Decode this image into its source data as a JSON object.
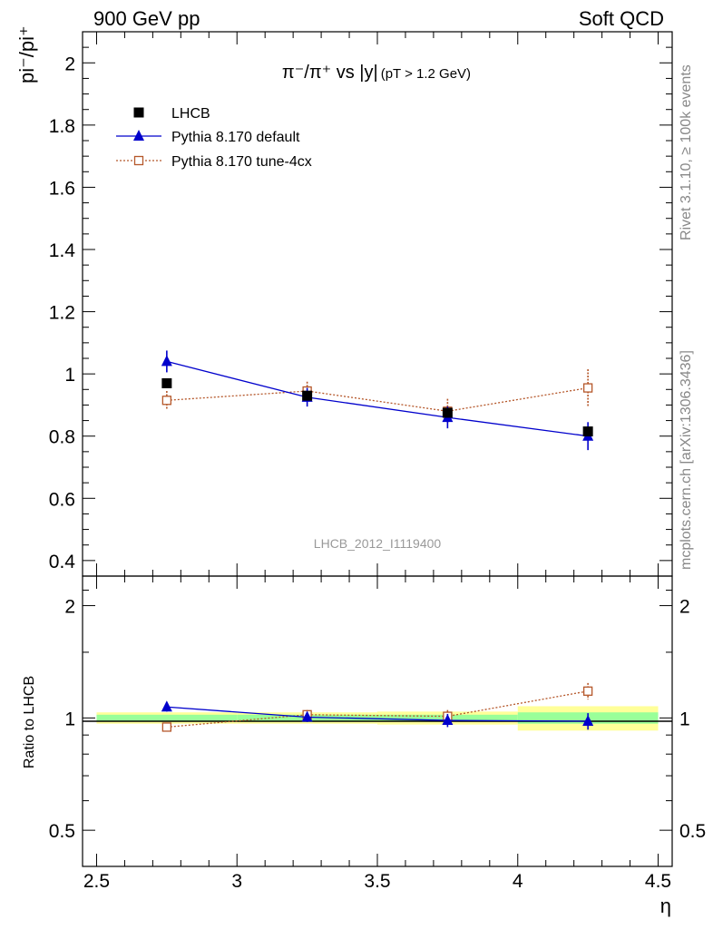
{
  "header": {
    "energy_label": "900 GeV pp",
    "process_label": "Soft QCD"
  },
  "side_labels": {
    "rivet": "Rivet 3.1.10, ≥ 100k events",
    "mcplots": "mcplots.cern.ch [arXiv:1306.3436]"
  },
  "watermark": "LHCB_2012_I1119400",
  "colors": {
    "data": "#000000",
    "default": "#0000cc",
    "tune": "#b5572a",
    "band_outer": "#ffff99",
    "band_inner": "#99ff99"
  },
  "chart_data": [
    {
      "type": "line",
      "panel": "main",
      "title_main": "π⁻/π⁺ vs |y|",
      "title_sub": "(pT > 1.2 GeV)",
      "ylabel": "pi⁻/pi⁺",
      "ylim": [
        0.35,
        2.1
      ],
      "yticks": [
        0.4,
        0.6,
        0.8,
        1.0,
        1.2,
        1.4,
        1.6,
        1.8,
        2.0
      ],
      "yticklabels": [
        "0.4",
        "0.6",
        "0.8",
        "1",
        "1.2",
        "1.4",
        "1.6",
        "1.8",
        "2"
      ],
      "legend_position": "top-left",
      "series": [
        {
          "name": "LHCB",
          "style": "data",
          "x": [
            2.75,
            3.25,
            3.75,
            4.25
          ],
          "y": [
            0.97,
            0.93,
            0.875,
            0.815
          ],
          "err": [
            0.01,
            0.01,
            0.01,
            0.015
          ]
        },
        {
          "name": "Pythia 8.170 default",
          "style": "default",
          "x": [
            2.75,
            3.25,
            3.75,
            4.25
          ],
          "y": [
            1.04,
            0.925,
            0.86,
            0.8
          ],
          "err": [
            0.035,
            0.03,
            0.035,
            0.045
          ]
        },
        {
          "name": "Pythia 8.170 tune-4cx",
          "style": "tune",
          "x": [
            2.75,
            3.25,
            3.75,
            4.25
          ],
          "y": [
            0.915,
            0.945,
            0.88,
            0.955
          ],
          "err": [
            0.03,
            0.03,
            0.04,
            0.06
          ]
        }
      ]
    },
    {
      "type": "line",
      "panel": "ratio",
      "ylabel": "Ratio to LHCB",
      "xlabel": "η",
      "ylim": [
        0.4,
        2.4
      ],
      "log_y": true,
      "yticks": [
        0.5,
        1,
        2
      ],
      "yticklabels": [
        "0.5",
        "1",
        "2"
      ],
      "xlim": [
        2.45,
        4.55
      ],
      "xticks": [
        2.5,
        3,
        3.5,
        4,
        4.5
      ],
      "xticklabels": [
        "2.5",
        "3",
        "3.5",
        "4",
        "4.5"
      ],
      "band": {
        "bins": [
          [
            2.5,
            3.0
          ],
          [
            3.0,
            3.5
          ],
          [
            3.5,
            4.0
          ],
          [
            4.0,
            4.5
          ]
        ],
        "outer": [
          0.035,
          0.035,
          0.04,
          0.075
        ],
        "inner": [
          0.02,
          0.02,
          0.02,
          0.035
        ]
      },
      "series": [
        {
          "name": "Pythia 8.170 default",
          "style": "default",
          "x": [
            2.75,
            3.25,
            3.75,
            4.25
          ],
          "y": [
            1.07,
            1.005,
            0.985,
            0.98
          ],
          "err": [
            0.03,
            0.03,
            0.04,
            0.05
          ]
        },
        {
          "name": "Pythia 8.170 tune-4cx",
          "style": "tune",
          "x": [
            2.75,
            3.25,
            3.75,
            4.25
          ],
          "y": [
            0.945,
            1.02,
            1.01,
            1.18
          ],
          "err": [
            0.02,
            0.03,
            0.04,
            0.06
          ]
        }
      ]
    }
  ]
}
